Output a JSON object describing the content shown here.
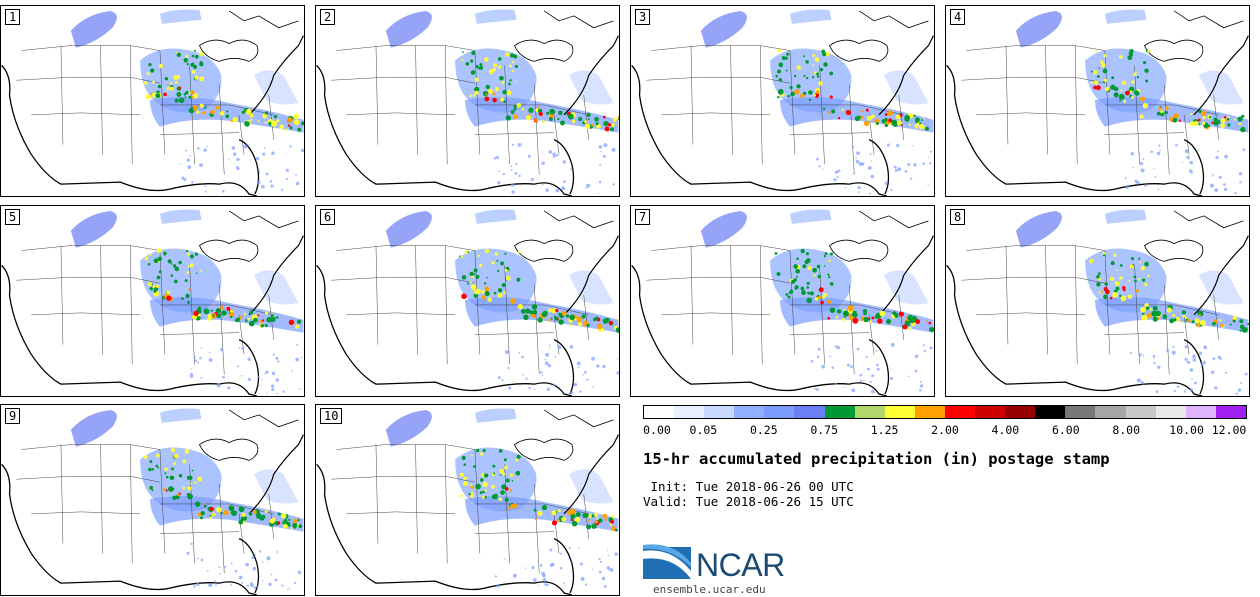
{
  "panels": [
    {
      "label": "1"
    },
    {
      "label": "2"
    },
    {
      "label": "3"
    },
    {
      "label": "4"
    },
    {
      "label": "5"
    },
    {
      "label": "6"
    },
    {
      "label": "7"
    },
    {
      "label": "8"
    },
    {
      "label": "9"
    },
    {
      "label": "10"
    }
  ],
  "colorbar": {
    "colors": [
      "#ffffff",
      "#e6f0ff",
      "#c7d9ff",
      "#8fb0ff",
      "#7b9cff",
      "#6a7ef5",
      "#009933",
      "#b0d86a",
      "#ffff33",
      "#ff9f00",
      "#ff0000",
      "#cc0000",
      "#990000",
      "#000000",
      "#777777",
      "#a6a6a6",
      "#c8c8c8",
      "#e8e8e8",
      "#e0b3ff",
      "#a020f0"
    ],
    "tick_labels": [
      "0.00",
      "0.05",
      "0.25",
      "0.75",
      "1.25",
      "2.00",
      "4.00",
      "6.00",
      "8.00",
      "10.00",
      "12.00"
    ]
  },
  "title": "15-hr accumulated precipitation (in) postage stamp",
  "init_text": " Init: Tue 2018-06-26 00 UTC",
  "valid_text": "Valid: Tue 2018-06-26 15 UTC",
  "logo": {
    "text": "NCAR",
    "url": "ensemble.ucar.edu",
    "color": "#1b4a73",
    "swoosh_color": "#2f7fbf"
  }
}
